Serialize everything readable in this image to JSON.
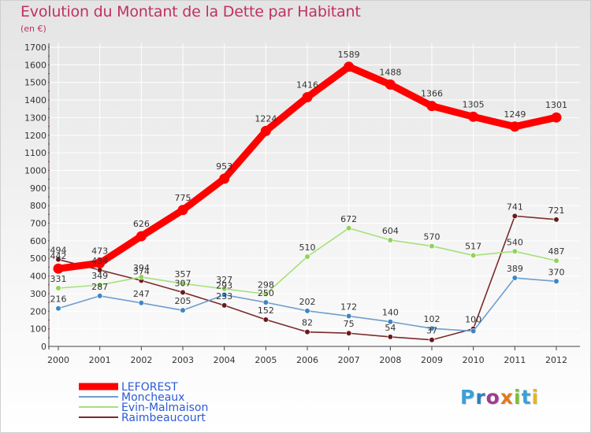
{
  "page": {
    "title": "Evolution du Montant de la Dette par Habitant",
    "subtitle": "(en €)",
    "logo_text": "Proxiti",
    "logo_colors": [
      "#3aa0d8",
      "#2f7fc0",
      "#9c3c8f",
      "#e07b20",
      "#7bbf35",
      "#3aa0d8",
      "#e8b520"
    ]
  },
  "chart_data": {
    "type": "line",
    "title": "Evolution du Montant de la Dette par Habitant",
    "subtitle": "(en €)",
    "xlabel": "",
    "ylabel": "",
    "x": [
      2000,
      2001,
      2002,
      2003,
      2004,
      2005,
      2006,
      2007,
      2008,
      2009,
      2010,
      2011,
      2012
    ],
    "ylim": [
      0,
      1700
    ],
    "yticks": [
      0,
      100,
      200,
      300,
      400,
      500,
      600,
      700,
      800,
      900,
      1000,
      1100,
      1200,
      1300,
      1400,
      1500,
      1600,
      1700
    ],
    "grid": true,
    "legend_position": "bottom-left",
    "series": [
      {
        "name": "LEFOREST",
        "color": "#ff0000",
        "values": [
          442,
          473,
          626,
          775,
          953,
          1224,
          1416,
          1589,
          1488,
          1366,
          1305,
          1249,
          1301
        ],
        "labels": [
          "442",
          "473",
          "626",
          "775",
          "953",
          "1224",
          "1416",
          "1589",
          "1488",
          "1366",
          "1305",
          "1249",
          "1301"
        ]
      },
      {
        "name": "Moncheaux",
        "color": "#6e9ecf",
        "marker": "#3d86c6",
        "values": [
          216,
          287,
          247,
          205,
          293,
          250,
          202,
          172,
          140,
          102,
          87,
          389,
          370
        ],
        "labels": [
          "216",
          "287",
          "247",
          "205",
          "293",
          "250",
          "202",
          "172",
          "140",
          "102",
          "",
          "389",
          "370"
        ]
      },
      {
        "name": "Evin-Malmaison",
        "color": "#a6e07a",
        "marker": "#8fd35a",
        "values": [
          331,
          349,
          394,
          357,
          327,
          298,
          510,
          672,
          604,
          570,
          517,
          540,
          487
        ],
        "labels": [
          "331",
          "349",
          "394",
          "357",
          "327",
          "298",
          "510",
          "672",
          "604",
          "570",
          "517",
          "540",
          "487"
        ]
      },
      {
        "name": "Raimbeaucourt",
        "color": "#7a2a2a",
        "marker": "#6b1a1a",
        "values": [
          494,
          434,
          374,
          307,
          233,
          152,
          82,
          75,
          54,
          37,
          100,
          741,
          721
        ],
        "labels": [
          "494",
          "434",
          "374",
          "307",
          "233",
          "152",
          "82",
          "75",
          "54",
          "37",
          "100",
          "741",
          "721"
        ]
      }
    ]
  }
}
